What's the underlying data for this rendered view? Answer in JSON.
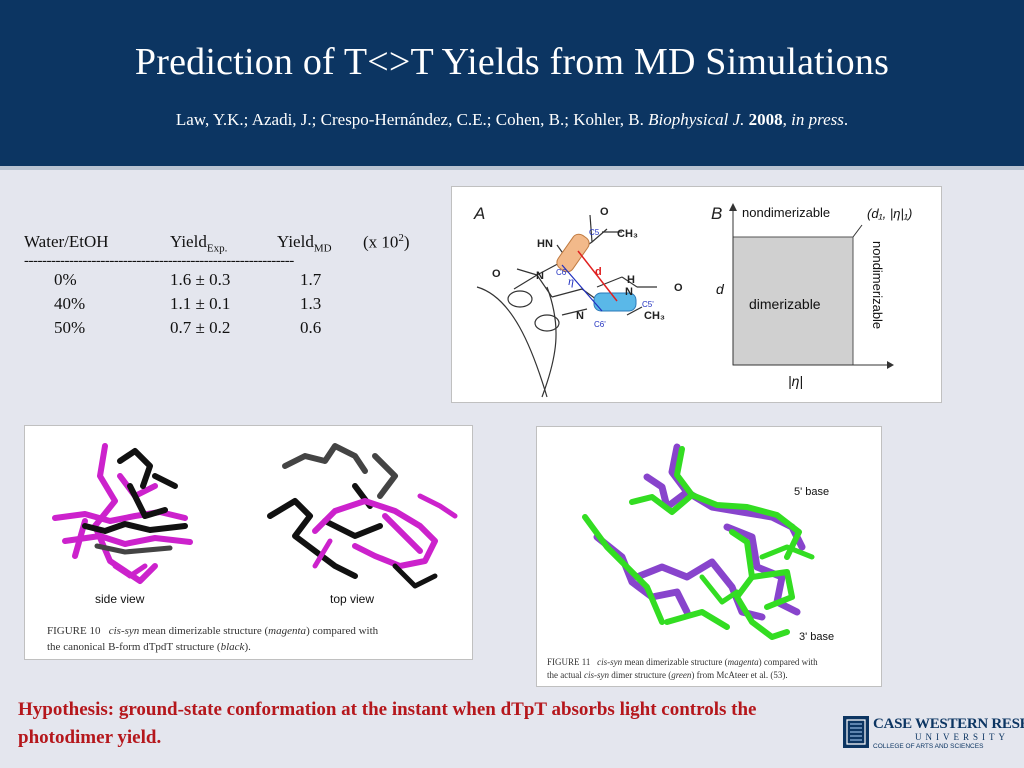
{
  "header": {
    "title": "Prediction of T<>T Yields from MD Simulations",
    "citation": {
      "authors": "Law, Y.K.; Azadi, J.; Crespo-Hernández, C.E.; Cohen, B.; Kohler, B.",
      "journal": "Biophysical J.",
      "year": "2008",
      "sep": ",",
      "status": "in press",
      "end": "."
    }
  },
  "table": {
    "columns": [
      "Water/EtOH",
      "Yield",
      "Exp.",
      "Yield",
      "MD",
      "(x 10",
      "2",
      ")"
    ],
    "divider": "------------------------------------------------------------",
    "rows": [
      {
        "water_etoh": "0%",
        "yield_exp": "1.6 ± 0.3",
        "yield_md": "1.7"
      },
      {
        "water_etoh": "40%",
        "yield_exp": "1.1 ± 0.1",
        "yield_md": "1.3"
      },
      {
        "water_etoh": "50%",
        "yield_exp": "0.7 ± 0.2",
        "yield_md": "0.6"
      }
    ]
  },
  "panel_a": {
    "label_a": "A",
    "label_b": "B",
    "labels": {
      "o1": "O",
      "ch3_1": "CH₃",
      "hn": "HN",
      "c5": "C5",
      "c6": "C6",
      "d": "d",
      "eta": "η",
      "o2": "O",
      "n1": "N",
      "n2": "N",
      "h": "H",
      "n3": "N",
      "o3": "O",
      "c5p": "C5'",
      "c6p": "C6'",
      "ch3_2": "CH₃",
      "n4": "N"
    },
    "top_label": "nondimerizable",
    "top_coord": "(d₁, |η|₁)",
    "side_label": "nondimerizable",
    "center_label": "dimerizable",
    "y_axis": "d",
    "x_axis": "|η|"
  },
  "figure10": {
    "side_view": "side view",
    "top_view": "top view",
    "cap_label": "FIGURE 10",
    "cap_1": "cis-syn",
    "cap_2": "mean dimerizable structure (",
    "cap_3": "magenta",
    "cap_4": ") compared with",
    "cap_5": "the canonical B-form dTpdT structure (",
    "cap_6": "black",
    "cap_7": ")."
  },
  "figure11": {
    "label_5": "5' base",
    "label_3": "3' base",
    "cap_label": "FIGURE 11",
    "cap_1": "cis-syn",
    "cap_2": "mean dimerizable structure (",
    "cap_3": "magenta",
    "cap_4": ") compared with",
    "cap_5": "the actual",
    "cap_6": "cis-syn",
    "cap_7": "dimer structure (",
    "cap_8": "green",
    "cap_9": ") from McAteer et al. (53)."
  },
  "hypothesis": "Hypothesis: ground-state conformation at the instant when dTpT absorbs light controls the photodimer yield.",
  "logo": {
    "line1": "CASE WESTERN RESERVE",
    "line2": "UNIVERSITY",
    "line3": "COLLEGE OF ARTS AND SCIENCES"
  },
  "colors": {
    "header_bg": "#0c3562",
    "hypothesis": "#b5171c",
    "magenta": "#cc22cc",
    "green": "#33dd22",
    "purple": "#8844cc"
  }
}
